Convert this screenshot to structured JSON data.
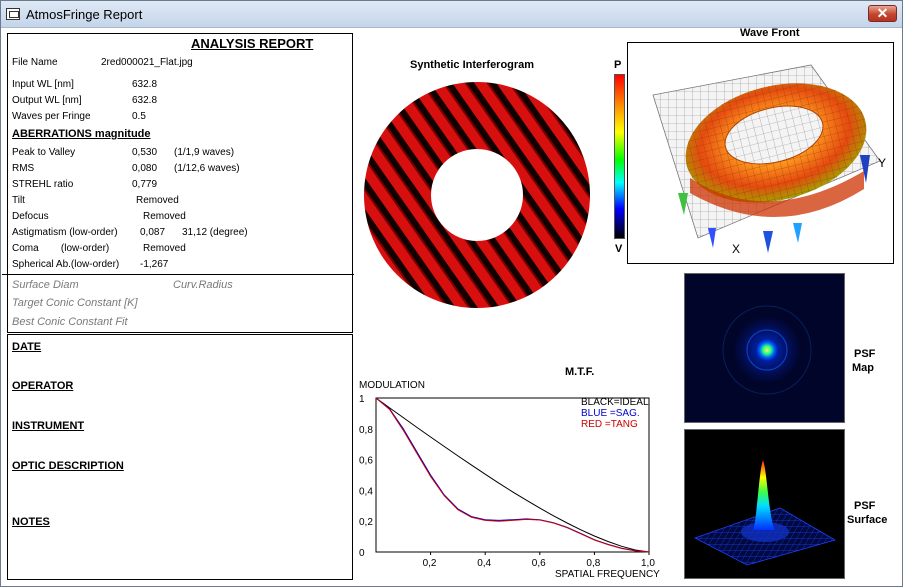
{
  "window": {
    "title": "AtmosFringe  Report",
    "close_label": "✕"
  },
  "report": {
    "title": "ANALYSIS  REPORT",
    "file_name_label": "File Name",
    "file_name_value": "2red000021_Flat.jpg",
    "input_wl_label": "Input  WL [nm]",
    "input_wl_value": "632.8",
    "output_wl_label": "Output WL [nm]",
    "output_wl_value": "632.8",
    "waves_label": "Waves per Fringe",
    "waves_value": "0.5",
    "aberrations_label": "ABERRATIONS magnitude",
    "pv_label": "Peak to Valley",
    "pv_value": "0,530",
    "pv_waves": "(1/1,9 waves)",
    "rms_label": "RMS",
    "rms_value": "0,080",
    "rms_waves": "(1/12,6 waves)",
    "strehl_label": "STREHL ratio",
    "strehl_value": "0,779",
    "tilt_label": "Tilt",
    "tilt_value": "Removed",
    "defocus_label": "Defocus",
    "defocus_value": "Removed",
    "astig_label": "Astigmatism  (low-order)",
    "astig_value": "0,087",
    "astig_angle": "31,12  (degree)",
    "coma_label": "Coma        (low-order)",
    "coma_value": "Removed",
    "spherical_label": "Spherical Ab.(low-order)",
    "spherical_value": "-1,267",
    "surface_diam_label": "Surface Diam",
    "curv_radius_label": "Curv.Radius",
    "target_conic_label": "Target Conic Constant [K]",
    "best_conic_label": "Best Conic Constant Fit"
  },
  "notes": {
    "date_label": "DATE",
    "operator_label": "OPERATOR",
    "instrument_label": "INSTRUMENT",
    "optic_label": "OPTIC DESCRIPTION",
    "notes_label": "NOTES"
  },
  "interferogram": {
    "title": "Synthetic Interferogram",
    "scale_top": "P",
    "scale_bottom": "V"
  },
  "wavefront": {
    "title": "Wave Front",
    "axis_y": "Y",
    "axis_x": "X"
  },
  "psf_map": {
    "label_1": "PSF",
    "label_2": "Map"
  },
  "psf_surface": {
    "label_1": "PSF",
    "label_2": "Surface"
  },
  "chart_data": {
    "type": "line",
    "title": "M.T.F.",
    "ylabel": "MODULATION",
    "xlabel": "SPATIAL FREQUENCY",
    "xlim": [
      0,
      1
    ],
    "ylim": [
      0,
      1
    ],
    "x_ticks": [
      "0,2",
      "0,4",
      "0,6",
      "0,8",
      "1,0"
    ],
    "y_ticks": [
      "0",
      "0,2",
      "0,4",
      "0,6",
      "0,8",
      "1"
    ],
    "legend": [
      "BLACK=IDEAL",
      "BLUE  =SAG.",
      "RED   =TANG"
    ],
    "legend_colors": [
      "#000000",
      "#0000cc",
      "#cc0000"
    ],
    "x": [
      0,
      0.05,
      0.1,
      0.15,
      0.2,
      0.25,
      0.3,
      0.35,
      0.4,
      0.45,
      0.5,
      0.55,
      0.6,
      0.65,
      0.7,
      0.75,
      0.8,
      0.85,
      0.9,
      0.95,
      1.0
    ],
    "series": [
      {
        "values": [
          1.0,
          0.936,
          0.873,
          0.809,
          0.747,
          0.685,
          0.624,
          0.564,
          0.505,
          0.447,
          0.391,
          0.337,
          0.285,
          0.235,
          0.188,
          0.144,
          0.104,
          0.068,
          0.037,
          0.013,
          0.0
        ]
      },
      {
        "values": [
          1.0,
          0.93,
          0.8,
          0.65,
          0.5,
          0.37,
          0.28,
          0.23,
          0.21,
          0.205,
          0.21,
          0.215,
          0.21,
          0.19,
          0.16,
          0.12,
          0.08,
          0.05,
          0.025,
          0.008,
          0.0
        ]
      },
      {
        "values": [
          1.0,
          0.925,
          0.79,
          0.64,
          0.49,
          0.365,
          0.275,
          0.225,
          0.205,
          0.2,
          0.205,
          0.212,
          0.208,
          0.188,
          0.158,
          0.118,
          0.078,
          0.048,
          0.023,
          0.007,
          0.0
        ]
      }
    ]
  }
}
